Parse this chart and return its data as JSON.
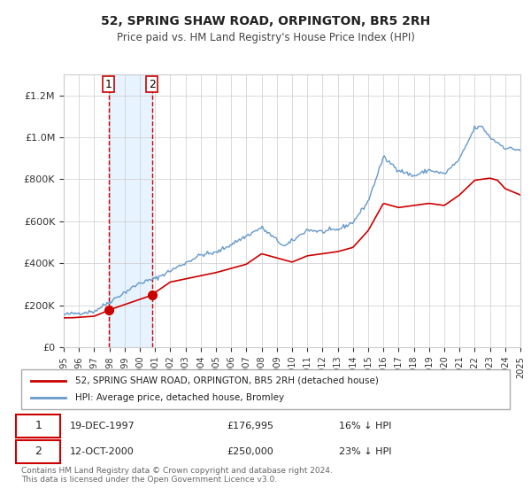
{
  "title": "52, SPRING SHAW ROAD, ORPINGTON, BR5 2RH",
  "subtitle": "Price paid vs. HM Land Registry's House Price Index (HPI)",
  "legend_label_red": "52, SPRING SHAW ROAD, ORPINGTON, BR5 2RH (detached house)",
  "legend_label_blue": "HPI: Average price, detached house, Bromley",
  "annotation1_label": "1",
  "annotation1_date": "19-DEC-1997",
  "annotation1_price": "£176,995",
  "annotation1_hpi": "16% ↓ HPI",
  "annotation2_label": "2",
  "annotation2_date": "12-OCT-2000",
  "annotation2_price": "£250,000",
  "annotation2_hpi": "23% ↓ HPI",
  "footer": "Contains HM Land Registry data © Crown copyright and database right 2024.\nThis data is licensed under the Open Government Licence v3.0.",
  "marker1_year": 1997.96,
  "marker1_value": 176995,
  "marker2_year": 2000.79,
  "marker2_value": 250000,
  "vline1_year": 1997.96,
  "vline2_year": 2000.79,
  "color_red": "#cc0000",
  "color_blue": "#6699cc",
  "color_shade": "#ddeeff",
  "ylim_max": 1300000,
  "ylim_min": 0,
  "xlim_min": 1995,
  "xlim_max": 2025
}
